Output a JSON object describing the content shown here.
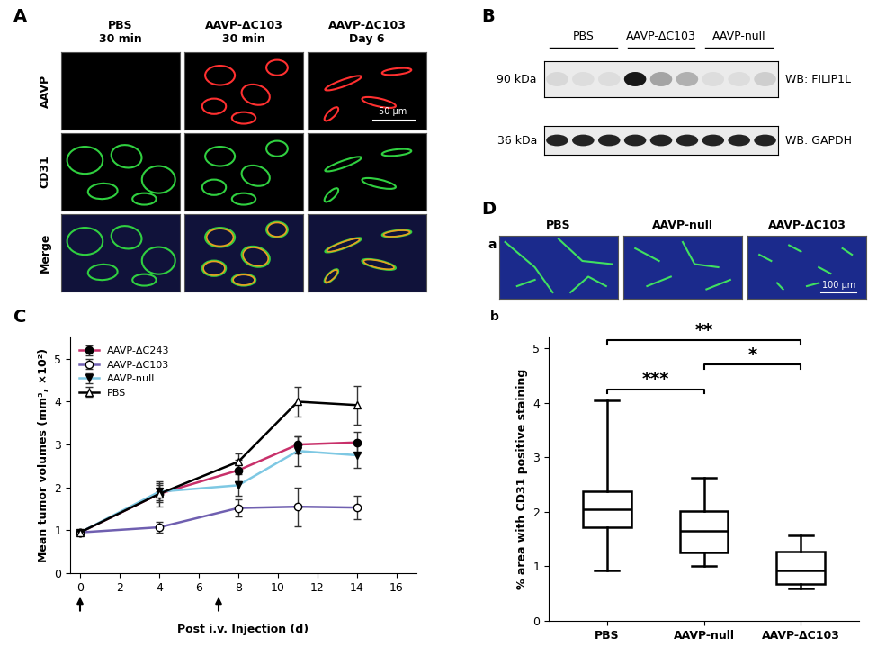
{
  "panels": {
    "A": {
      "letter": "A",
      "columns": [
        "PBS\n30 min",
        "AAVP-ΔC103\n30 min",
        "AAVP-ΔC103\nDay 6"
      ],
      "rows": [
        "AAVP",
        "CD31",
        "Merge"
      ],
      "scale_bar": "50 µm"
    },
    "B": {
      "letter": "B",
      "groups": [
        "PBS",
        "AAVP-ΔC103",
        "AAVP-null"
      ],
      "lanes_per_group": 3,
      "blots": [
        {
          "size": "90 kDa",
          "label": "WB: FILIP1L",
          "band_intensity": [
            0.08,
            0.06,
            0.06,
            0.9,
            0.3,
            0.25,
            0.06,
            0.06,
            0.12
          ]
        },
        {
          "size": "36 kDa",
          "label": "WB: GAPDH",
          "band_intensity": [
            0.85,
            0.85,
            0.85,
            0.85,
            0.85,
            0.85,
            0.85,
            0.85,
            0.85
          ]
        }
      ]
    },
    "C": {
      "letter": "C"
    },
    "D": {
      "letter": "D",
      "sub_a": "a",
      "sub_b": "b",
      "images": [
        "PBS",
        "AAVP-null",
        "AAVP-ΔC103"
      ],
      "scale_bar": "100 µm"
    }
  },
  "chart_data": [
    {
      "type": "line",
      "x": [
        0,
        4,
        8,
        11,
        14
      ],
      "xlabel": "Post i.v. Injection (d)",
      "ylabel": "Mean tumor volumes (mm³, ×10²)",
      "xlim": [
        -0.5,
        17
      ],
      "xticks": [
        0,
        2,
        4,
        6,
        8,
        10,
        12,
        14,
        16
      ],
      "ylim": [
        0,
        5.5
      ],
      "yticks": [
        0,
        1,
        2,
        3,
        4,
        5
      ],
      "legend": "upper left",
      "injection_days": [
        0,
        7
      ],
      "series": [
        {
          "name": "AAVP-ΔC243",
          "color": "#c8306a",
          "marker": "circle",
          "line_style": "solid",
          "values": [
            0.95,
            1.85,
            2.4,
            3.0,
            3.05
          ],
          "errors": [
            0,
            0.2,
            0.25,
            0.2,
            0.25
          ]
        },
        {
          "name": "AAVP-ΔC103",
          "color": "#6f5fb0",
          "marker": "open_circle",
          "line_style": "solid",
          "values": [
            0.95,
            1.07,
            1.52,
            1.55,
            1.53
          ],
          "errors": [
            0,
            0.12,
            0.2,
            0.45,
            0.28
          ]
        },
        {
          "name": "AAVP-null",
          "color": "#7ec8e3",
          "marker": "triangle_down",
          "line_style": "solid",
          "values": [
            0.95,
            1.9,
            2.05,
            2.85,
            2.75
          ],
          "errors": [
            0,
            0.2,
            0.25,
            0.35,
            0.3
          ]
        },
        {
          "name": "PBS",
          "color": "#000000",
          "marker": "open_triangle_up",
          "line_style": "solid",
          "values": [
            0.95,
            1.85,
            2.6,
            4.0,
            3.92
          ],
          "errors": [
            0,
            0.3,
            0.2,
            0.35,
            0.45
          ]
        }
      ]
    },
    {
      "type": "box",
      "ylabel": "% area with CD31 positive staining",
      "categories": [
        "PBS",
        "AAVP-null",
        "AAVP-ΔC103"
      ],
      "ylim": [
        0,
        5.2
      ],
      "yticks": [
        0,
        1,
        2,
        3,
        4,
        5
      ],
      "boxes": [
        {
          "whislo": 0.93,
          "q1": 1.72,
          "med": 2.05,
          "q3": 2.38,
          "whishi": 4.05
        },
        {
          "whislo": 1.0,
          "q1": 1.25,
          "med": 1.65,
          "q3": 2.02,
          "whishi": 2.62
        },
        {
          "whislo": 0.6,
          "q1": 0.68,
          "med": 0.93,
          "q3": 1.27,
          "whishi": 1.57
        }
      ],
      "comparisons": [
        {
          "groups": [
            "PBS",
            "AAVP-null"
          ],
          "label": "***"
        },
        {
          "groups": [
            "AAVP-null",
            "AAVP-ΔC103"
          ],
          "label": "*"
        },
        {
          "groups": [
            "PBS",
            "AAVP-ΔC103"
          ],
          "label": "**"
        }
      ]
    }
  ]
}
